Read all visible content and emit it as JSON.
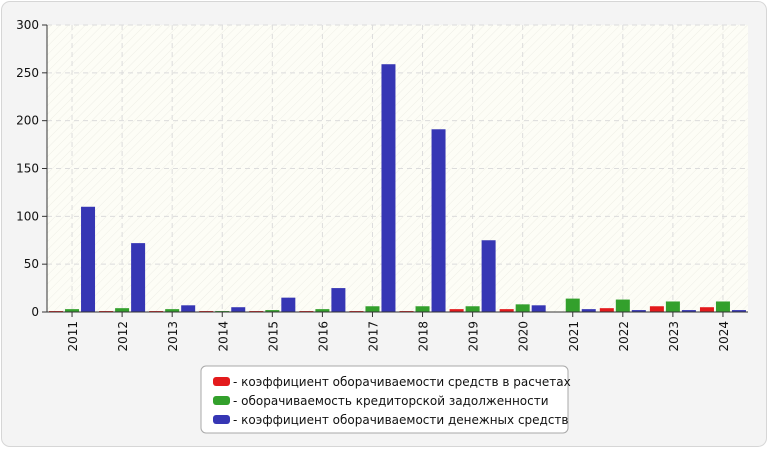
{
  "chart_data": {
    "type": "bar",
    "categories": [
      "2011",
      "2012",
      "2013",
      "2014",
      "2015",
      "2016",
      "2017",
      "2018",
      "2019",
      "2020",
      "2021",
      "2022",
      "2023",
      "2024"
    ],
    "ylim": [
      0,
      300
    ],
    "yticks": [
      0,
      50,
      100,
      150,
      200,
      250,
      300
    ],
    "grid": true,
    "legend_placement": "bottom-center",
    "series": [
      {
        "name": "- коэффициент оборачиваемости средств в расчетах",
        "color": "#e31a1c",
        "values": [
          1,
          1,
          1,
          1,
          1,
          1,
          1,
          1,
          3,
          3,
          0,
          4,
          6,
          5
        ]
      },
      {
        "name": "- оборачиваемость кредиторской задолженности",
        "color": "#33a02c",
        "values": [
          3,
          4,
          3,
          1,
          2,
          3,
          6,
          6,
          6,
          8,
          14,
          13,
          11,
          11
        ]
      },
      {
        "name": "- коэффициент оборачиваемости денежных средств",
        "color": "#3636b4",
        "values": [
          110,
          72,
          7,
          5,
          15,
          25,
          259,
          191,
          75,
          7,
          3,
          2,
          2,
          2
        ]
      }
    ]
  }
}
